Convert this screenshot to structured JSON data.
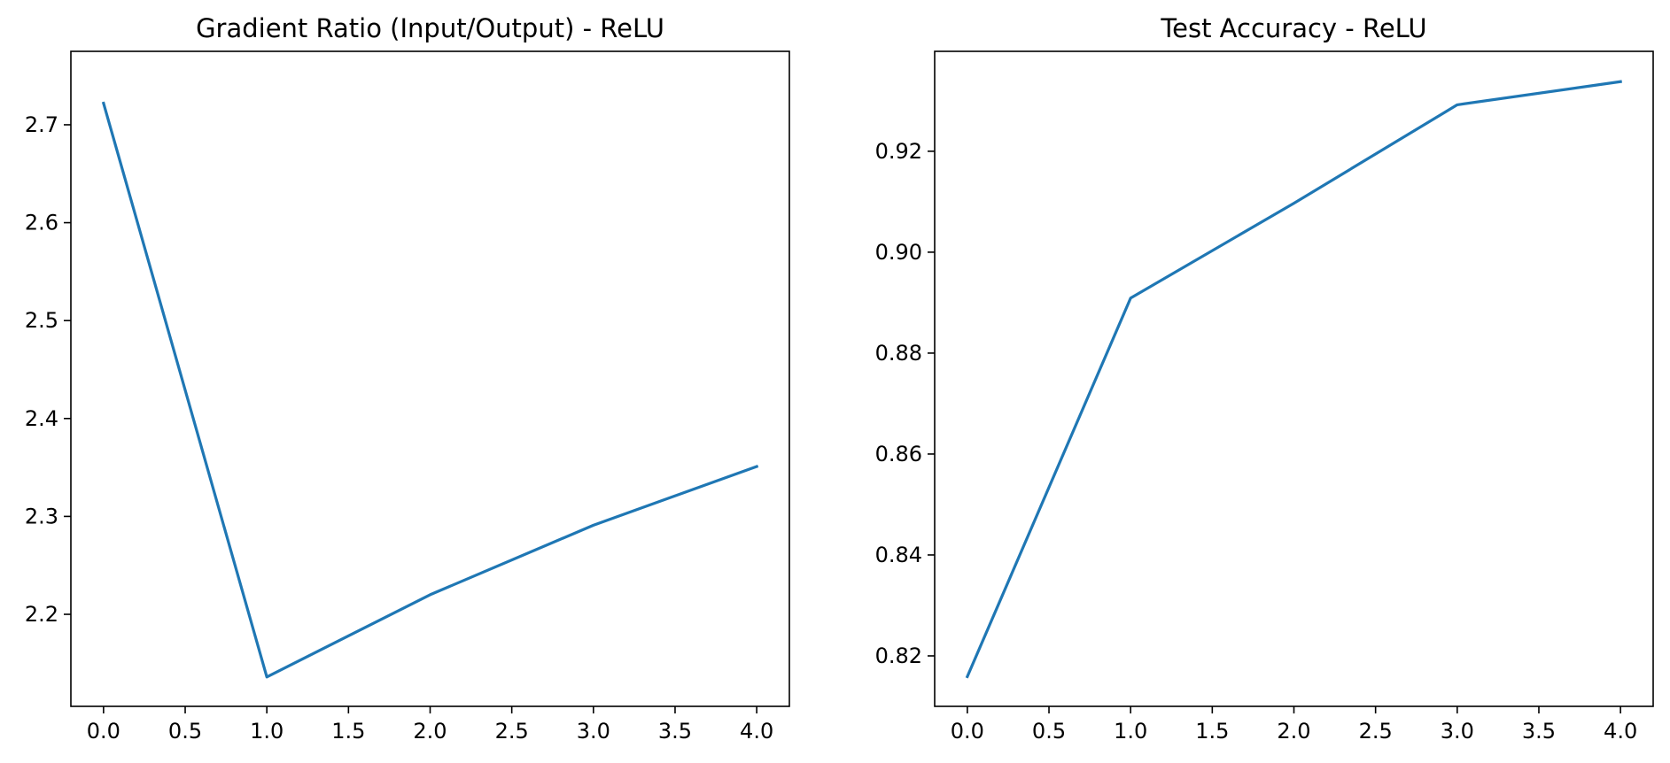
{
  "chart_data": [
    {
      "type": "line",
      "title": "Gradient Ratio (Input/Output) - ReLU",
      "xlabel": "",
      "ylabel": "",
      "x": [
        0,
        1,
        2,
        3,
        4
      ],
      "series": [
        {
          "values": [
            2.722,
            2.136,
            2.22,
            2.291,
            2.351
          ],
          "color": "#1f77b4"
        }
      ],
      "xlim": [
        -0.2,
        4.2
      ],
      "ylim": [
        2.106,
        2.775
      ],
      "xticks": [
        0.0,
        0.5,
        1.0,
        1.5,
        2.0,
        2.5,
        3.0,
        3.5,
        4.0
      ],
      "xtick_labels": [
        "0.0",
        "0.5",
        "1.0",
        "1.5",
        "2.0",
        "2.5",
        "3.0",
        "3.5",
        "4.0"
      ],
      "yticks": [
        2.2,
        2.3,
        2.4,
        2.5,
        2.6,
        2.7
      ],
      "ytick_labels": [
        "2.2",
        "2.3",
        "2.4",
        "2.5",
        "2.6",
        "2.7"
      ],
      "grid": false,
      "legend": "none"
    },
    {
      "type": "line",
      "title": "Test Accuracy - ReLU",
      "xlabel": "",
      "ylabel": "",
      "x": [
        0,
        1,
        2,
        3,
        4
      ],
      "series": [
        {
          "values": [
            0.8159,
            0.8909,
            0.9097,
            0.9292,
            0.9338
          ],
          "color": "#1f77b4"
        }
      ],
      "xlim": [
        -0.2,
        4.2
      ],
      "ylim": [
        0.81,
        0.9398
      ],
      "xticks": [
        0.0,
        0.5,
        1.0,
        1.5,
        2.0,
        2.5,
        3.0,
        3.5,
        4.0
      ],
      "xtick_labels": [
        "0.0",
        "0.5",
        "1.0",
        "1.5",
        "2.0",
        "2.5",
        "3.0",
        "3.5",
        "4.0"
      ],
      "yticks": [
        0.82,
        0.84,
        0.86,
        0.88,
        0.9,
        0.92
      ],
      "ytick_labels": [
        "0.82",
        "0.84",
        "0.86",
        "0.88",
        "0.90",
        "0.92"
      ],
      "grid": false,
      "legend": "none"
    }
  ]
}
